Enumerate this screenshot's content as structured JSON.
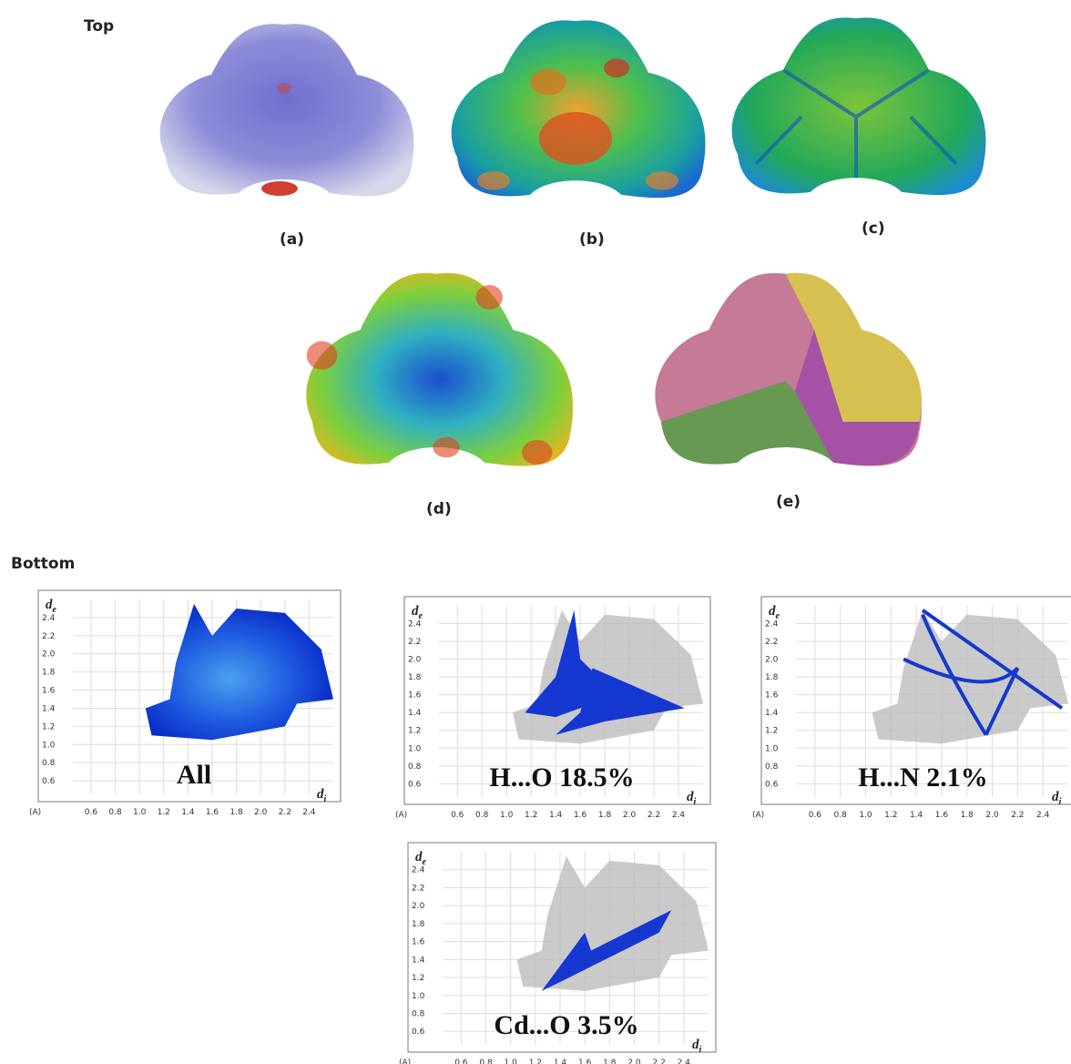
{
  "top": {
    "label": "Top",
    "panels": [
      {
        "label": "(a)"
      },
      {
        "label": "(b)"
      },
      {
        "label": "(c)"
      },
      {
        "label": "(d)"
      },
      {
        "label": "(e)"
      }
    ]
  },
  "bottom": {
    "label": "Bottom",
    "axis": {
      "y_name": "d",
      "y_sub": "e",
      "x_name": "d",
      "x_sub": "i",
      "unit": "(A)",
      "yticks": [
        "2.4",
        "2.2",
        "2.0",
        "1.8",
        "1.6",
        "1.4",
        "1.2",
        "1.0",
        "0.8",
        "0.6"
      ],
      "xticks": [
        "0.6",
        "0.8",
        "1.0",
        "1.2",
        "1.4",
        "1.6",
        "1.8",
        "2.0",
        "2.2",
        "2.4"
      ]
    },
    "plots": [
      {
        "label": "All"
      },
      {
        "label": "H...O  18.5%"
      },
      {
        "label": "H...N  2.1%"
      },
      {
        "label": "Cd...O  3.5%"
      }
    ]
  }
}
